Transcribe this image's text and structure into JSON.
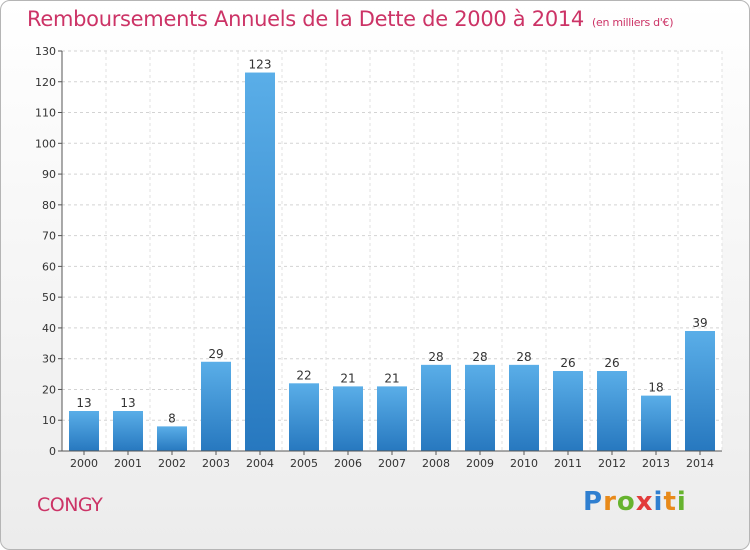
{
  "title": "Remboursements Annuels de la Dette de 2000 à 2014",
  "title_unit": "(en milliers d'€)",
  "city": "CONGY",
  "logo_text": "Proxiti",
  "colors": {
    "bar": "#3a8fd6",
    "title": "#cc3366"
  },
  "chart_data": {
    "type": "bar",
    "categories": [
      "2000",
      "2001",
      "2002",
      "2003",
      "2004",
      "2005",
      "2006",
      "2007",
      "2008",
      "2009",
      "2010",
      "2011",
      "2012",
      "2013",
      "2014"
    ],
    "values": [
      13,
      13,
      8,
      29,
      123,
      22,
      21,
      21,
      28,
      28,
      28,
      26,
      26,
      18,
      39
    ],
    "ylim": [
      0,
      130
    ],
    "yticks": [
      0,
      10,
      20,
      30,
      40,
      50,
      60,
      70,
      80,
      90,
      100,
      110,
      120,
      130
    ],
    "grid": true,
    "data_labels": true
  }
}
